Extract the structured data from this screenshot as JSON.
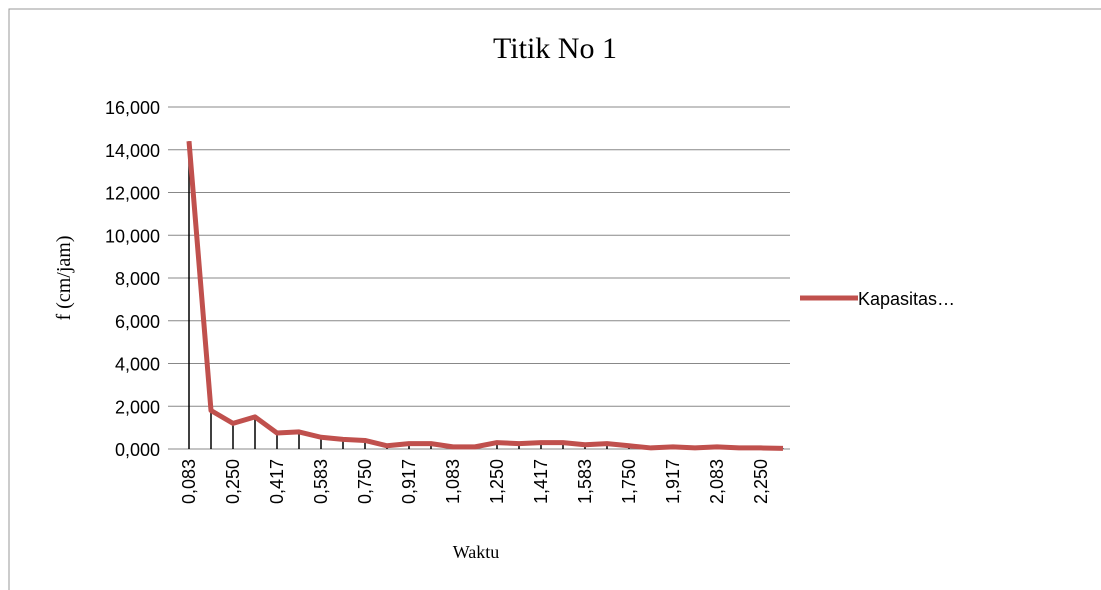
{
  "chart_data": {
    "type": "line",
    "title": "Titik No 1",
    "x_label": "Waktu",
    "y_label": "f (cm/jam)",
    "categories": [
      "0,083",
      null,
      "0,250",
      null,
      "0,417",
      null,
      "0,583",
      null,
      "0,750",
      null,
      "0,917",
      null,
      "1,083",
      null,
      "1,250",
      null,
      "1,417",
      null,
      "1,583",
      null,
      "1,750",
      null,
      "1,917",
      null,
      "2,083",
      null,
      "2,250",
      null
    ],
    "series": [
      {
        "name": "Kapasitas…",
        "color": "#c0504d",
        "values": [
          14.4,
          1.8,
          1.2,
          1.5,
          0.75,
          0.8,
          0.55,
          0.45,
          0.4,
          0.15,
          0.25,
          0.25,
          0.1,
          0.1,
          0.3,
          0.25,
          0.3,
          0.3,
          0.2,
          0.25,
          0.15,
          0.05,
          0.1,
          0.05,
          0.1,
          0.05,
          0.05,
          0.03
        ]
      }
    ],
    "ylim": [
      0,
      16
    ],
    "yticks": [
      {
        "value": 0,
        "label": "0,000"
      },
      {
        "value": 2,
        "label": "2,000"
      },
      {
        "value": 4,
        "label": "4,000"
      },
      {
        "value": 6,
        "label": "6,000"
      },
      {
        "value": 8,
        "label": "8,000"
      },
      {
        "value": 10,
        "label": "10,000"
      },
      {
        "value": 12,
        "label": "12,000"
      },
      {
        "value": 14,
        "label": "14,000"
      },
      {
        "value": 16,
        "label": "16,000"
      }
    ],
    "grid": true,
    "drop_lines": true,
    "legend": "right"
  }
}
